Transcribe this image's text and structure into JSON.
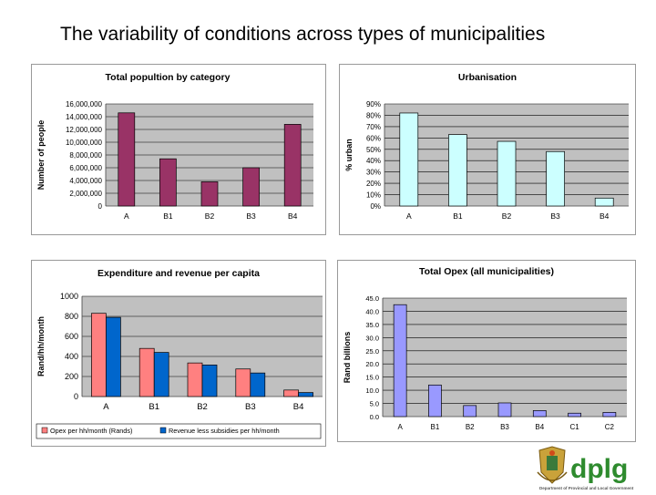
{
  "slide": {
    "title": "The variability of conditions across types of municipalities"
  },
  "logo": {
    "text": "dplg",
    "tagline": "Department of Provincial and Local Government"
  },
  "colors": {
    "plot_bg": "#c0c0c0",
    "panel_bg": "#ffffff",
    "maroon": "#993366",
    "cyan": "#ccffff",
    "salmon": "#ff8080",
    "blue": "#0066cc",
    "periwinkle": "#9999ff",
    "logo_green": "#2e8b2e"
  },
  "chart_data": [
    {
      "type": "bar",
      "title": "Total popultion by category",
      "ylabel": "Number of people",
      "xlabel": "",
      "categories": [
        "A",
        "B1",
        "B2",
        "B3",
        "B4"
      ],
      "values": [
        14600000,
        7400000,
        3800000,
        6000000,
        12800000
      ],
      "ylim": [
        0,
        16000000
      ],
      "yticks": [
        "0",
        "2,000,000",
        "4,000,000",
        "6,000,000",
        "8,000,000",
        "10,000,000",
        "12,000,000",
        "14,000,000",
        "16,000,000"
      ],
      "grid": true,
      "color": "#993366"
    },
    {
      "type": "bar",
      "title": "Urbanisation",
      "ylabel": "% urban",
      "xlabel": "",
      "categories": [
        "A",
        "B1",
        "B2",
        "B3",
        "B4"
      ],
      "values": [
        82,
        63,
        57,
        48,
        7
      ],
      "ylim": [
        0,
        90
      ],
      "yticks": [
        "0%",
        "10%",
        "20%",
        "30%",
        "40%",
        "50%",
        "60%",
        "70%",
        "80%",
        "90%"
      ],
      "grid": true,
      "color": "#ccffff"
    },
    {
      "type": "bar",
      "title": "Expenditure and revenue per capita",
      "ylabel": "Rand/hh/month",
      "xlabel": "",
      "categories": [
        "A",
        "B1",
        "B2",
        "B3",
        "B4"
      ],
      "ylim": [
        0,
        1000
      ],
      "yticks": [
        "0",
        "200",
        "400",
        "600",
        "800",
        "1000"
      ],
      "grid": true,
      "legend": "bottom",
      "series": [
        {
          "name": "Opex per hh/month (Rands)",
          "values": [
            830,
            480,
            335,
            275,
            65
          ],
          "color": "#ff8080"
        },
        {
          "name": "Revenue less subsidies per hh/month",
          "values": [
            790,
            440,
            315,
            235,
            40
          ],
          "color": "#0066cc"
        }
      ]
    },
    {
      "type": "bar",
      "title": "Total Opex (all municipalities)",
      "ylabel": "Rand billions",
      "xlabel": "",
      "categories": [
        "A",
        "B1",
        "B2",
        "B3",
        "B4",
        "C1",
        "C2"
      ],
      "values": [
        42.5,
        12.0,
        4.2,
        5.2,
        2.3,
        1.3,
        1.6
      ],
      "ylim": [
        0,
        45
      ],
      "yticks": [
        "0.0",
        "5.0",
        "10.0",
        "15.0",
        "20.0",
        "25.0",
        "30.0",
        "35.0",
        "40.0",
        "45.0"
      ],
      "grid": true,
      "color": "#9999ff"
    }
  ]
}
